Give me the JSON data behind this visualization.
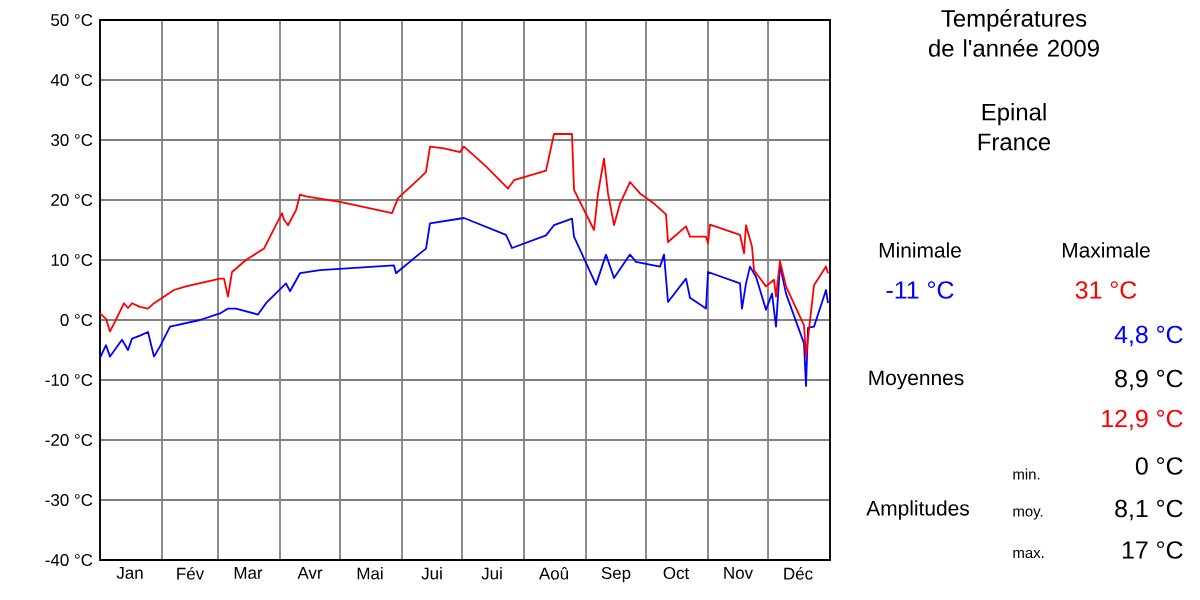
{
  "chart_data": {
    "type": "line",
    "title": "Températures de l'année 2009",
    "subtitle": "Epinal France",
    "xlim": [
      "2009-01-01",
      "2010-01-01"
    ],
    "xticks": [
      {
        "value": "2009-01-01",
        "label": null
      },
      {
        "value": "2009-01-16",
        "label": "Jan"
      },
      {
        "value": "2009-02-01",
        "label": null
      },
      {
        "value": "2009-02-15",
        "label": "Fév"
      },
      {
        "value": "2009-03-01",
        "label": null
      },
      {
        "value": "2009-03-16",
        "label": "Mar"
      },
      {
        "value": "2009-04-01",
        "label": null
      },
      {
        "value": "2009-04-16",
        "label": "Avr"
      },
      {
        "value": "2009-05-01",
        "label": null
      },
      {
        "value": "2009-05-16",
        "label": "Mai"
      },
      {
        "value": "2009-06-01",
        "label": null
      },
      {
        "value": "2009-06-16",
        "label": "Jui"
      },
      {
        "value": "2009-07-01",
        "label": null
      },
      {
        "value": "2009-07-16",
        "label": "Jui"
      },
      {
        "value": "2009-08-01",
        "label": null
      },
      {
        "value": "2009-08-16",
        "label": "Aoû"
      },
      {
        "value": "2009-09-01",
        "label": null
      },
      {
        "value": "2009-09-16",
        "label": "Sep"
      },
      {
        "value": "2009-10-01",
        "label": null
      },
      {
        "value": "2009-10-16",
        "label": "Oct"
      },
      {
        "value": "2009-11-01",
        "label": null
      },
      {
        "value": "2009-11-16",
        "label": "Nov"
      },
      {
        "value": "2009-12-01",
        "label": null
      },
      {
        "value": "2009-12-16",
        "label": "Déc"
      },
      {
        "value": "2010-01-01",
        "label": null
      }
    ],
    "ylim": [
      -40,
      50
    ],
    "yticks": [
      {
        "value": -40,
        "label": "-40 °C"
      },
      {
        "value": -30,
        "label": "-30 °C"
      },
      {
        "value": -20,
        "label": "-20 °C"
      },
      {
        "value": -10,
        "label": "-10 °C"
      },
      {
        "value": 0,
        "label": "0 °C"
      },
      {
        "value": 10,
        "label": "10 °C"
      },
      {
        "value": 20,
        "label": "20 °C"
      },
      {
        "value": 30,
        "label": "30 °C"
      },
      {
        "value": 40,
        "label": "40 °C"
      },
      {
        "value": 50,
        "label": "50 °C"
      }
    ],
    "grid": true,
    "series": [
      {
        "color": "#0000ff",
        "x": [
          "2009-01-01",
          "2009-01-04",
          "2009-01-06",
          "2009-01-12",
          "2009-01-15",
          "2009-01-17",
          "2009-01-21",
          "2009-01-25",
          "2009-01-28",
          "2009-01-31",
          "2009-02-05",
          "2009-02-20",
          "2009-03-02",
          "2009-03-06",
          "2009-03-10",
          "2009-03-21",
          "2009-03-25",
          "2009-04-04",
          "2009-04-06",
          "2009-04-11",
          "2009-04-21",
          "2009-05-28",
          "2009-05-29",
          "2009-06-10",
          "2009-06-13",
          "2009-06-15",
          "2009-07-02",
          "2009-07-23",
          "2009-07-26",
          "2009-08-12",
          "2009-08-16",
          "2009-08-25",
          "2009-08-26",
          "2009-09-06",
          "2009-09-11",
          "2009-09-15",
          "2009-09-23",
          "2009-09-26",
          "2009-10-08",
          "2009-10-10",
          "2009-10-12",
          "2009-10-21",
          "2009-10-23",
          "2009-10-31",
          "2009-11-01",
          "2009-11-17",
          "2009-11-18",
          "2009-11-20",
          "2009-11-22",
          "2009-11-25",
          "2009-11-30",
          "2009-12-03",
          "2009-12-05",
          "2009-12-07",
          "2009-12-10",
          "2009-12-19",
          "2009-12-20",
          "2009-12-21",
          "2009-12-24",
          "2009-12-30",
          "2009-12-31"
        ],
        "values": [
          -6.3,
          -4.2,
          -6.1,
          -3.3,
          -5,
          -3.1,
          -2.6,
          -2,
          -6.1,
          -4.4,
          -1.1,
          0,
          1.1,
          1.9,
          1.9,
          0.9,
          2.8,
          6.1,
          4.8,
          7.8,
          8.3,
          9.1,
          7.8,
          11.1,
          11.9,
          16.1,
          17,
          14.2,
          12,
          14.1,
          15.8,
          16.9,
          13.9,
          5.9,
          10.9,
          7,
          10.9,
          9.7,
          8.9,
          10.9,
          3,
          6.9,
          3.7,
          1.9,
          8,
          6.1,
          1.9,
          6.1,
          8.9,
          7.2,
          1.7,
          4.4,
          -1.1,
          9.1,
          4.4,
          -3.9,
          -11,
          -1.3,
          -1.1,
          5,
          2.8
        ]
      },
      {
        "color": "#ff0000",
        "x": [
          "2009-01-01",
          "2009-01-04",
          "2009-01-06",
          "2009-01-08",
          "2009-01-13",
          "2009-01-15",
          "2009-01-17",
          "2009-01-21",
          "2009-01-25",
          "2009-01-28",
          "2009-02-02",
          "2009-02-07",
          "2009-02-13",
          "2009-03-02",
          "2009-03-04",
          "2009-03-06",
          "2009-03-08",
          "2009-03-15",
          "2009-03-24",
          "2009-04-02",
          "2009-04-03",
          "2009-04-05",
          "2009-04-09",
          "2009-04-11",
          "2009-04-14",
          "2009-05-01",
          "2009-05-27",
          "2009-05-30",
          "2009-06-10",
          "2009-06-13",
          "2009-06-15",
          "2009-06-22",
          "2009-06-30",
          "2009-07-02",
          "2009-07-13",
          "2009-07-24",
          "2009-07-27",
          "2009-08-12",
          "2009-08-16",
          "2009-08-25",
          "2009-08-26",
          "2009-09-05",
          "2009-09-07",
          "2009-09-10",
          "2009-09-12",
          "2009-09-15",
          "2009-09-18",
          "2009-09-23",
          "2009-09-28",
          "2009-10-05",
          "2009-10-11",
          "2009-10-12",
          "2009-10-21",
          "2009-10-23",
          "2009-10-31",
          "2009-11-01",
          "2009-11-02",
          "2009-11-17",
          "2009-11-19",
          "2009-11-20",
          "2009-11-23",
          "2009-11-24",
          "2009-11-30",
          "2009-12-04",
          "2009-12-05",
          "2009-12-07",
          "2009-12-10",
          "2009-12-19",
          "2009-12-20",
          "2009-12-24",
          "2009-12-30",
          "2009-12-31"
        ],
        "values": [
          1.1,
          0.2,
          -1.9,
          -0.6,
          2.8,
          2,
          2.8,
          2.2,
          1.9,
          2.8,
          3.9,
          5,
          5.6,
          6.9,
          6.9,
          3.9,
          8,
          10,
          11.9,
          17.8,
          16.7,
          15.8,
          18.3,
          20.9,
          20.6,
          19.7,
          17.8,
          20.3,
          23.7,
          24.7,
          28.9,
          28.6,
          28,
          28.9,
          25.6,
          21.9,
          23.3,
          24.9,
          31,
          31,
          21.7,
          15,
          21.1,
          26.9,
          21.1,
          15.8,
          19.4,
          23,
          21.1,
          19.4,
          17.6,
          13,
          15.6,
          13.9,
          13.9,
          12.8,
          15.9,
          14.2,
          11.1,
          15.8,
          12.2,
          8.3,
          5.6,
          6.7,
          3.9,
          9.8,
          5.6,
          -0.9,
          -6.1,
          5.8,
          8.9,
          7.8
        ]
      }
    ],
    "annotations": [
      "Minimale",
      "Maximale",
      "-11 °C",
      "31 °C",
      "4,8 °C",
      "Moyennes",
      "8,9 °C",
      "12,9 °C",
      "min.",
      "0 °C",
      "Amplitudes",
      "moy.",
      "8,1 °C",
      "max.",
      "17 °C"
    ]
  }
}
